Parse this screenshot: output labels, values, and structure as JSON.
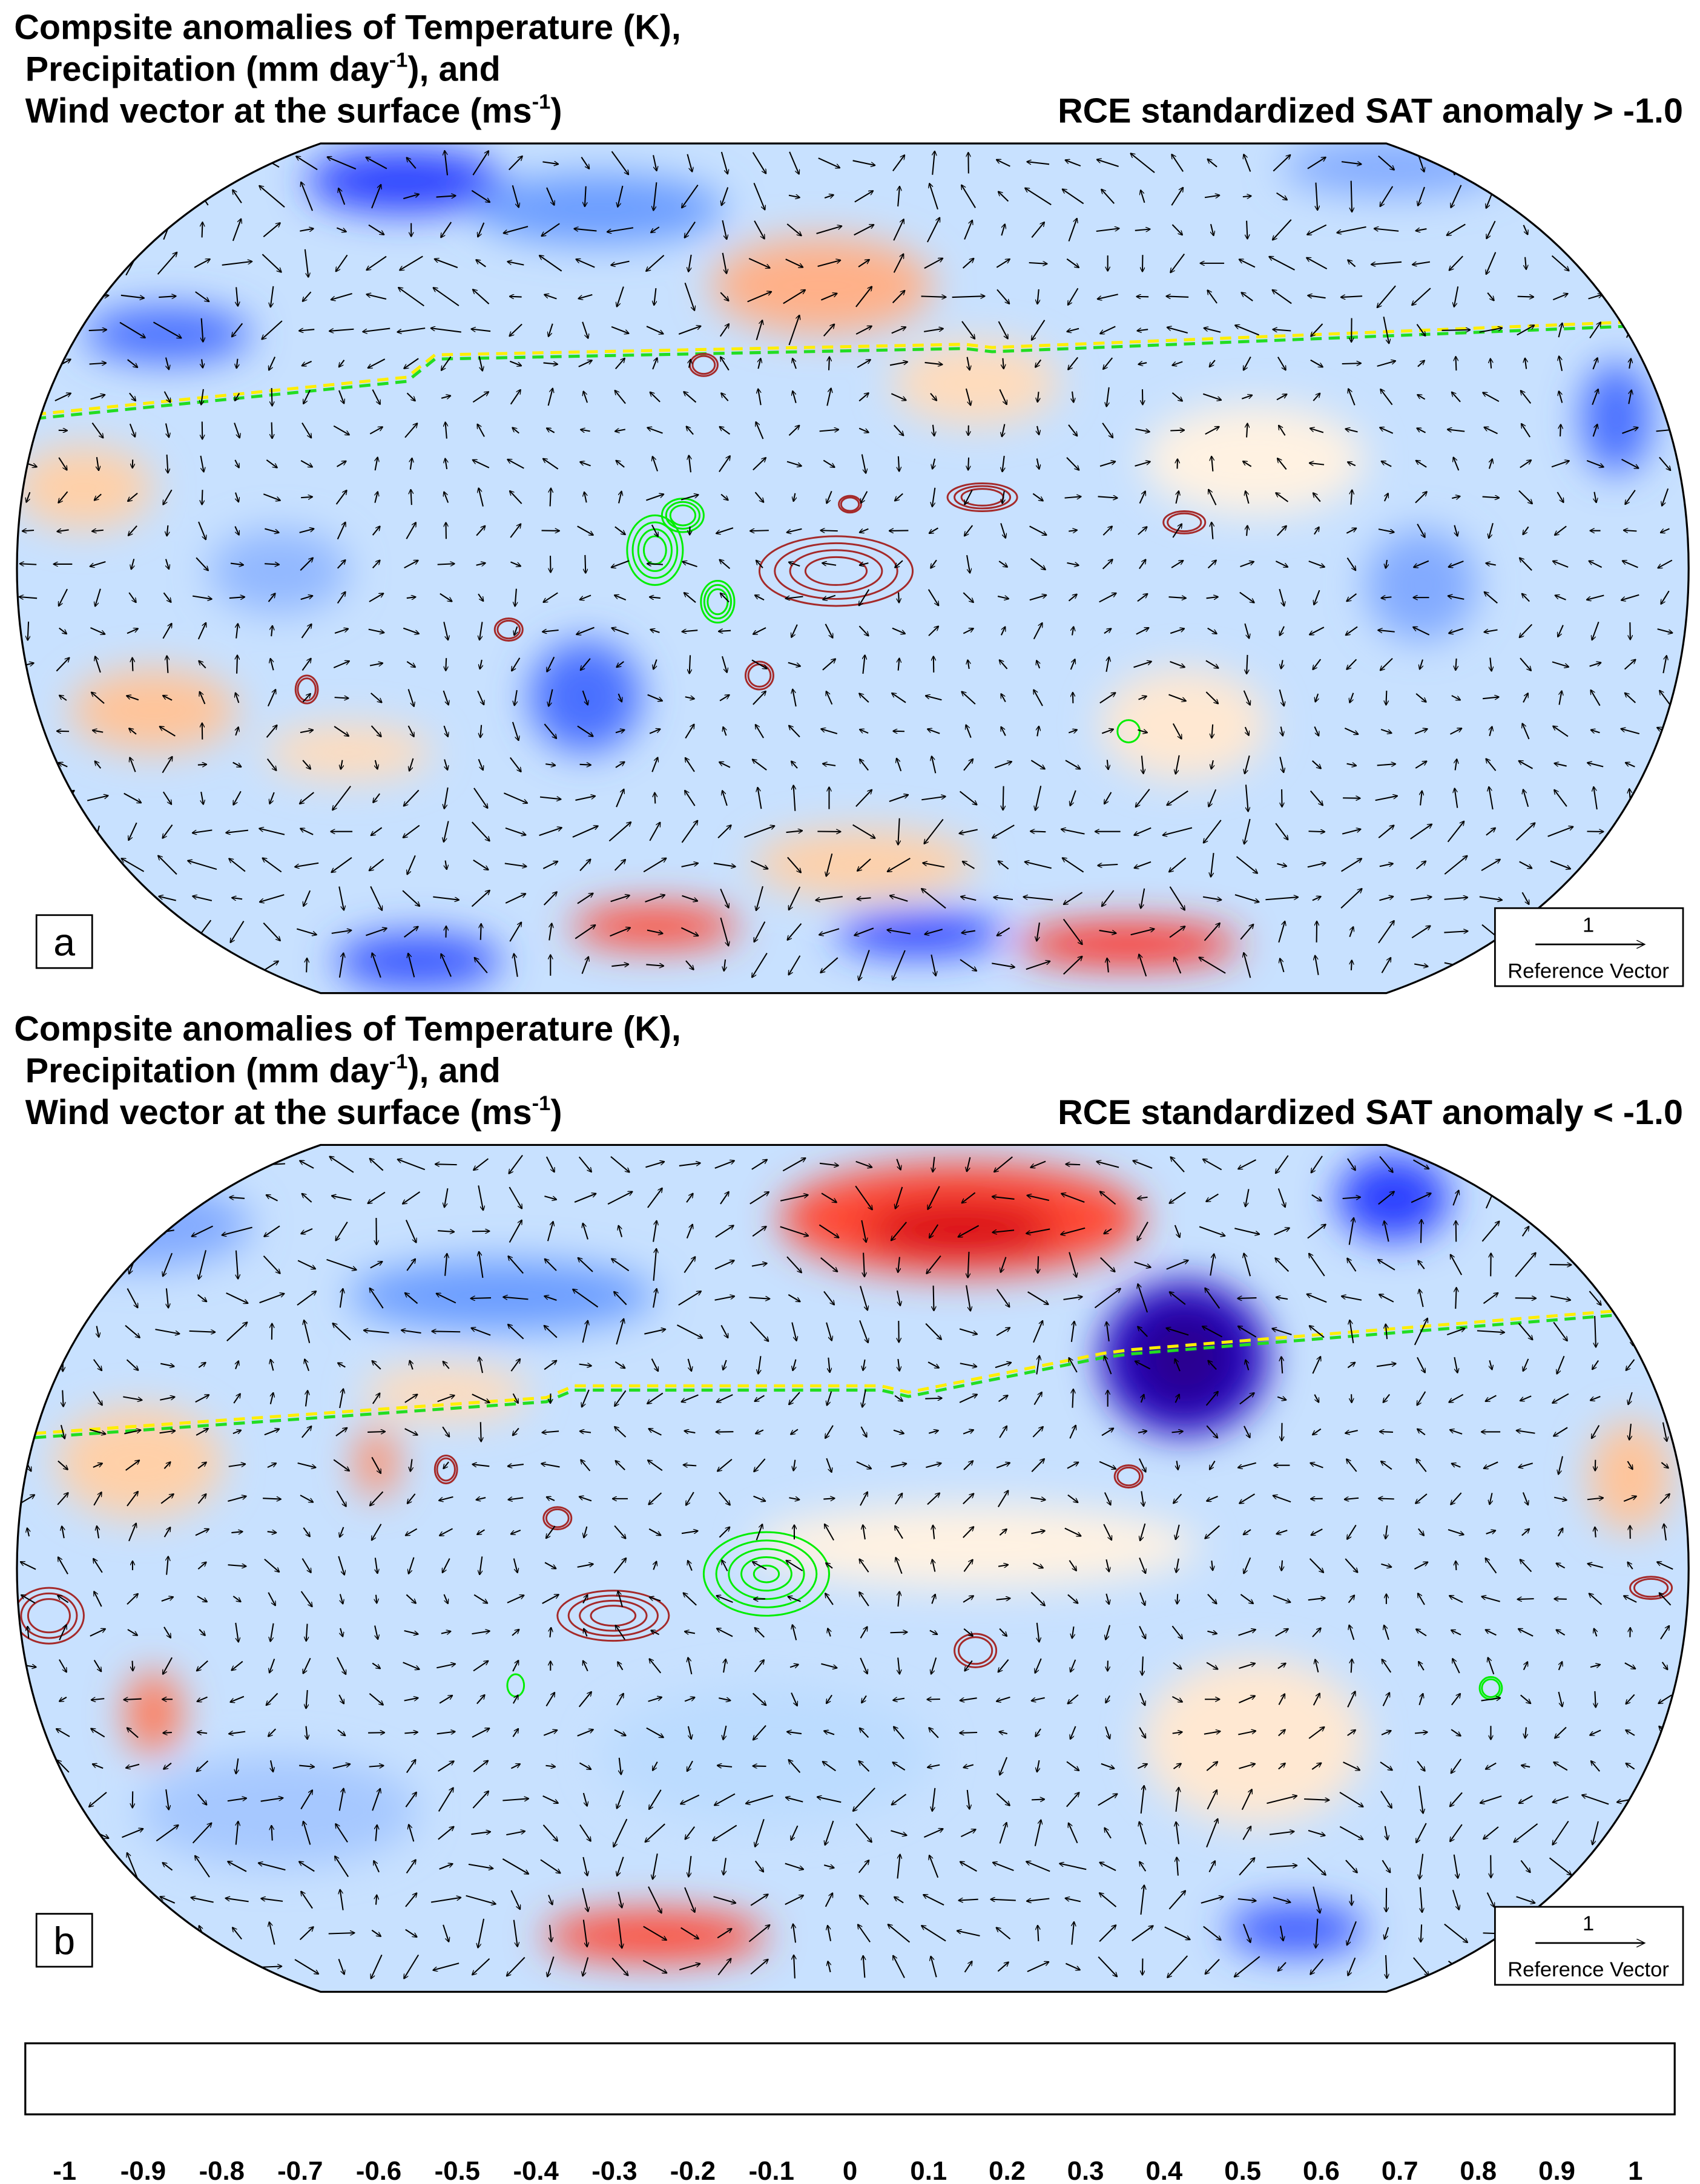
{
  "panels": [
    {
      "title_line1": "Compsite anomalies of Temperature (K),",
      "title_line2_pre": "Precipitation (mm day",
      "title_line2_sup": "-1",
      "title_line2_post": "), and",
      "title_line3_pre": "Wind vector at the surface (ms",
      "title_line3_sup": "-1",
      "title_line3_post": ")",
      "condition": "RCE standardized SAT anomaly > -1.0",
      "label": "a",
      "ref_vector_value": "1",
      "ref_vector_label": "Reference Vector"
    },
    {
      "title_line1": "Compsite anomalies of Temperature (K),",
      "title_line2_pre": "Precipitation (mm day",
      "title_line2_sup": "-1",
      "title_line2_post": "), and",
      "title_line3_pre": "Wind vector at the surface (ms",
      "title_line3_sup": "-1",
      "title_line3_post": ")",
      "condition": "RCE standardized SAT anomaly < -1.0",
      "label": "b",
      "ref_vector_value": "1",
      "ref_vector_label": "Reference Vector"
    }
  ],
  "colorbar": {
    "labels": [
      "-1",
      "-0.9",
      "-0.8",
      "-0.7",
      "-0.6",
      "-0.5",
      "-0.4",
      "-0.3",
      "-0.2",
      "-0.1",
      "0",
      "0.1",
      "0.2",
      "0.3",
      "0.4",
      "0.5",
      "0.6",
      "0.7",
      "0.8",
      "0.9",
      "1"
    ],
    "colors": [
      "#2c0073",
      "#2a0090",
      "#2600a0",
      "#2000a8",
      "#1a00c0",
      "#1400d0",
      "#0c00e8",
      "#0000ff",
      "#1a22ff",
      "#2a40ff",
      "#3a58ff",
      "#4a70ff",
      "#5a88ff",
      "#6a9cff",
      "#82aaff",
      "#92b8ff",
      "#a6c8ff",
      "#bcdcff",
      "#cce6ff",
      "#ddf0ff",
      "#f0f8ff",
      "#fffbf5",
      "#fff2e2",
      "#ffe8d2",
      "#ffdcbc",
      "#ffd0a8",
      "#ffc49a",
      "#ffb088",
      "#ffa07a",
      "#ff8e68",
      "#ff7a58",
      "#ff6448",
      "#ff4a34",
      "#ff2e20",
      "#ff1010",
      "#f00808",
      "#d80018",
      "#c80020",
      "#b00028",
      "#a00028",
      "#900030",
      "#800030"
    ]
  },
  "colors": {
    "precip_positive_contour": "#a52a2a",
    "precip_negative_contour": "#00ee00",
    "line_yellow": "#ffee00",
    "line_green": "#22dd22"
  }
}
